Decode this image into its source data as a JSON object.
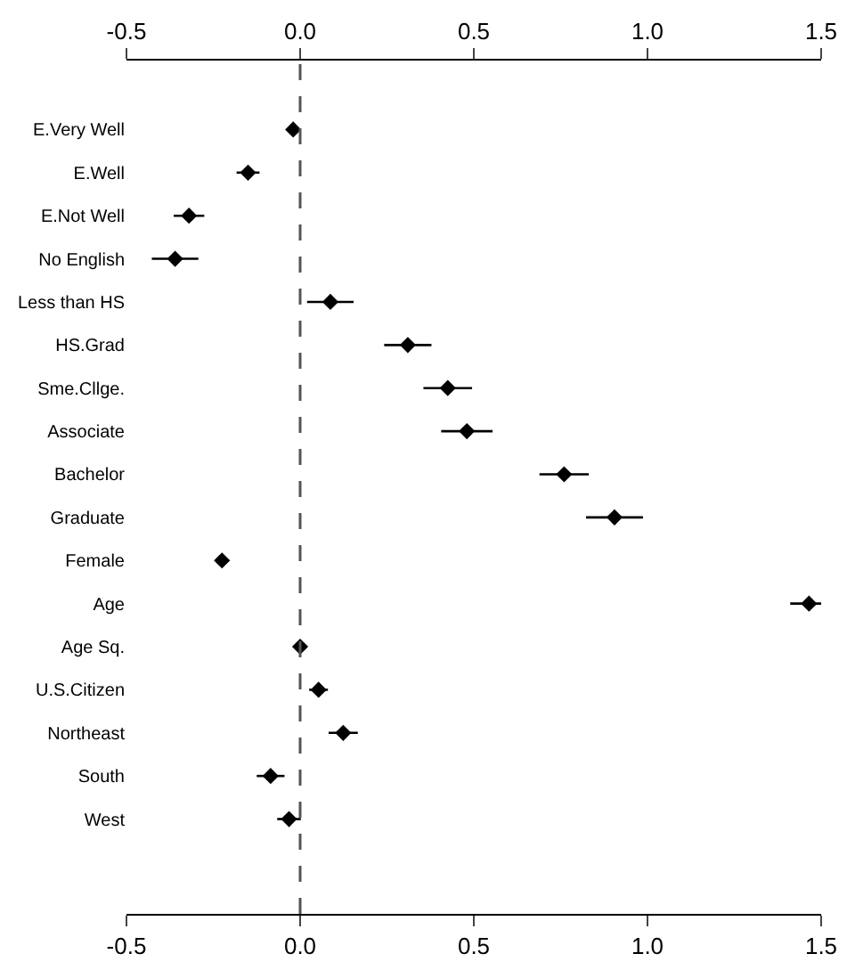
{
  "chart_data": {
    "type": "scatter",
    "orientation": "horizontal",
    "categories": [
      "E.Very Well",
      "E.Well",
      "E.Not Well",
      "No English",
      "Less than HS",
      "HS.Grad",
      "Sme.Cllge.",
      "Associate",
      "Bachelor",
      "Graduate",
      "Female",
      "Age",
      "Age Sq.",
      "U.S.Citizen",
      "Northeast",
      "South",
      "West"
    ],
    "values": [
      -0.02,
      -0.15,
      -0.32,
      -0.36,
      0.087,
      0.31,
      0.425,
      0.48,
      0.76,
      0.905,
      -0.225,
      1.465,
      0.0,
      0.053,
      0.124,
      -0.085,
      -0.032
    ],
    "errors": [
      0.01,
      0.033,
      0.044,
      0.067,
      0.067,
      0.068,
      0.07,
      0.074,
      0.071,
      0.082,
      0.01,
      0.054,
      0.005,
      0.027,
      0.042,
      0.04,
      0.034
    ],
    "color": "#000000",
    "marker": "diamond",
    "xlim": [
      -0.5,
      1.5
    ],
    "xticks": [
      {
        "value": -0.5,
        "label": "-0.5"
      },
      {
        "value": 0,
        "label": "0.0"
      },
      {
        "value": 0.5,
        "label": "0.5"
      },
      {
        "value": 1,
        "label": "1.0"
      },
      {
        "value": 1.5,
        "label": "1.5"
      }
    ],
    "x2lim": [
      -0.5,
      1.5
    ],
    "x2ticks": [
      {
        "value": -0.5,
        "label": "-0.5"
      },
      {
        "value": 0,
        "label": "0.0"
      },
      {
        "value": 0.5,
        "label": "0.5"
      },
      {
        "value": 1,
        "label": "1.0"
      },
      {
        "value": 1.5,
        "label": "1.5"
      }
    ],
    "ref_lines": [
      {
        "axis": "x",
        "value": 0,
        "color": "#555555",
        "line_style": "dashed"
      }
    ]
  }
}
